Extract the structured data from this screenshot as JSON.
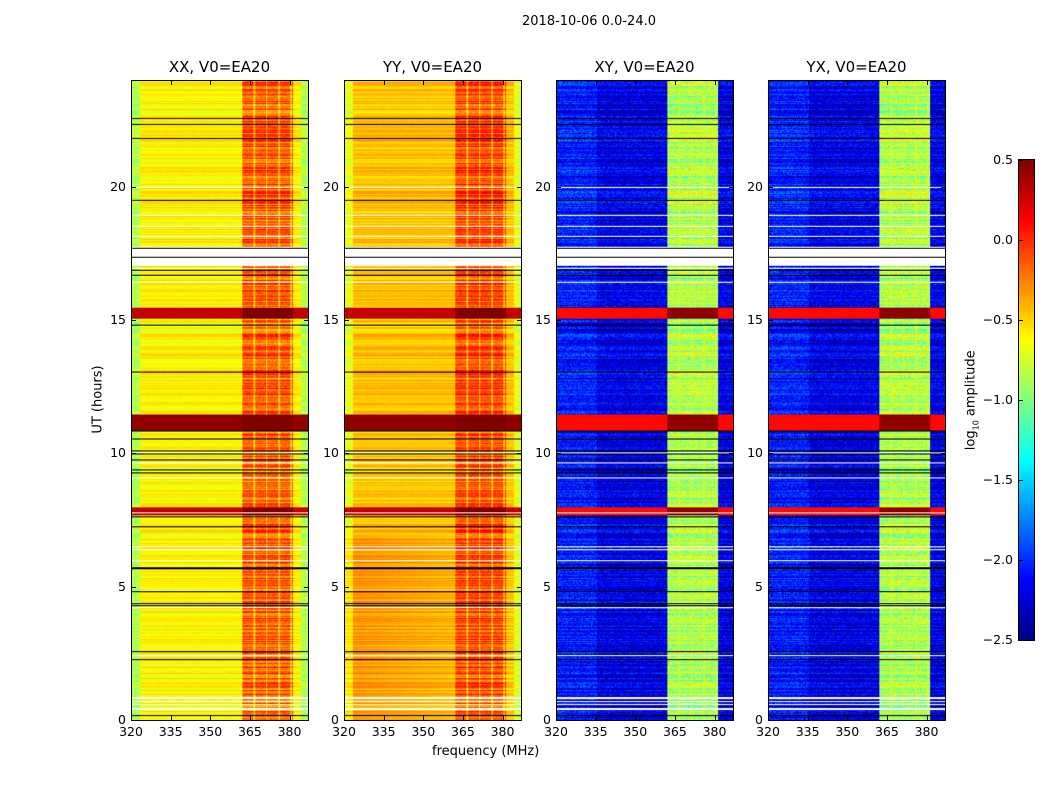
{
  "suptitle": "2018-10-06 0.0-24.0",
  "chart_data": {
    "type": "heatmap",
    "panels": [
      {
        "title": "XX, V0=EA20",
        "kind": "auto",
        "background": -0.6,
        "band": -0.15
      },
      {
        "title": "YY, V0=EA20",
        "kind": "auto",
        "background": -0.45,
        "band": -0.1
      },
      {
        "title": "XY, V0=EA20",
        "kind": "cross",
        "background": -2.2,
        "band": -0.85
      },
      {
        "title": "YX, V0=EA20",
        "kind": "cross",
        "background": -2.2,
        "band": -0.85
      }
    ],
    "xlabel": "frequency (MHz)",
    "ylabel": "UT (hours)",
    "xlim": [
      320,
      387
    ],
    "ylim": [
      0,
      24
    ],
    "xticks": [
      "320",
      "335",
      "350",
      "365",
      "380"
    ],
    "yticks": [
      "0",
      "5",
      "10",
      "15",
      "20"
    ],
    "high_amplitude_band_mhz": [
      362,
      381
    ],
    "flagged_gaps_hours": [
      [
        17.1,
        17.8
      ]
    ],
    "strong_rfi_bands_hours": [
      [
        10.9,
        11.5
      ],
      [
        7.7,
        8.0
      ],
      [
        15.1,
        15.5
      ]
    ],
    "colormap": "jet",
    "colorbar": {
      "label": "log10 amplitude",
      "label_main": "log",
      "label_sub": "10",
      "label_rest": " amplitude",
      "range": [
        -2.5,
        0.5
      ],
      "ticks": [
        "0.5",
        "0.0",
        "−0.5",
        "−1.0",
        "−1.5",
        "−2.0",
        "−2.5"
      ]
    }
  }
}
